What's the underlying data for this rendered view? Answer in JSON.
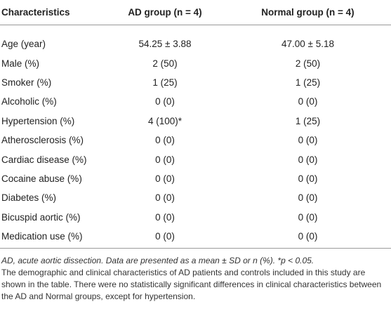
{
  "table": {
    "header": [
      "Characteristics",
      "AD group (n = 4)",
      "Normal group (n = 4)"
    ],
    "rows": [
      [
        "Age (year)",
        "54.25 ± 3.88",
        "47.00 ± 5.18"
      ],
      [
        "Male (%)",
        "2 (50)",
        "2 (50)"
      ],
      [
        "Smoker (%)",
        "1 (25)",
        "1 (25)"
      ],
      [
        "Alcoholic (%)",
        "0 (0)",
        "0 (0)"
      ],
      [
        "Hypertension (%)",
        "4 (100)*",
        "1 (25)"
      ],
      [
        "Atherosclerosis (%)",
        "0 (0)",
        "0 (0)"
      ],
      [
        "Cardiac disease (%)",
        "0 (0)",
        "0 (0)"
      ],
      [
        "Cocaine abuse (%)",
        "0 (0)",
        "0 (0)"
      ],
      [
        "Diabetes (%)",
        "0 (0)",
        "0 (0)"
      ],
      [
        "Bicuspid aortic (%)",
        "0 (0)",
        "0 (0)"
      ],
      [
        "Medication use (%)",
        "0 (0)",
        "0 (0)"
      ]
    ]
  },
  "footnote": {
    "note": "AD, acute aortic dissection. Data are presented as a mean ± SD or n (%). *p < 0.05.",
    "description": "The demographic and clinical characteristics of AD patients and controls included in this study are shown in the table. There were no statistically significant differences in clinical characteristics between the AD and Normal groups, except for hypertension."
  }
}
